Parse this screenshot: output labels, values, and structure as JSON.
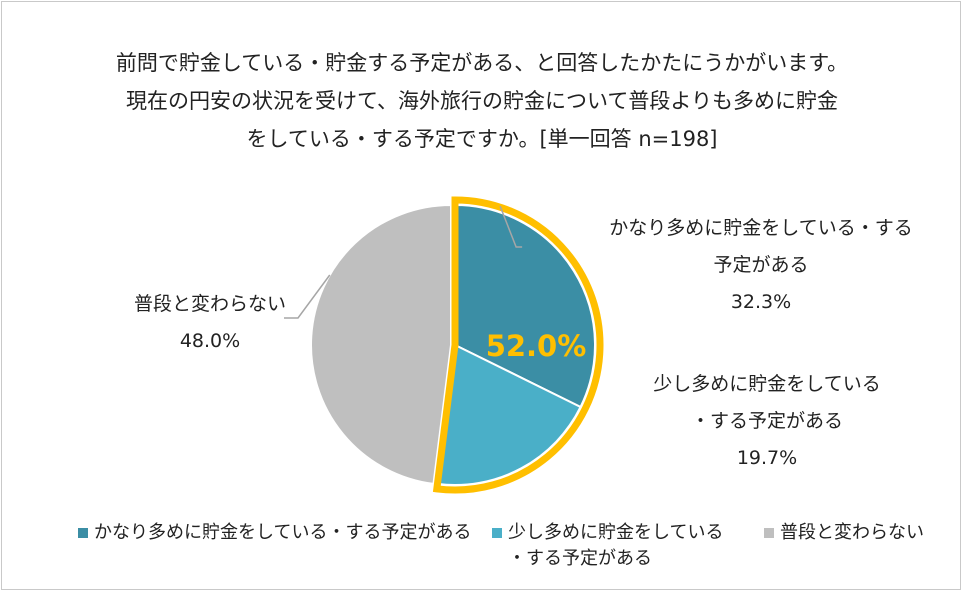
{
  "title": {
    "line1": "前問で貯金している・貯金する予定がある、と回答したかたにうかがいます。",
    "line2": "現在の円安の状況を受けて、海外旅行の貯金について普段よりも多めに貯金",
    "line3": "をしている・する予定ですか。[単一回答 n=198]"
  },
  "highlight_label": "52.0%",
  "colors": {
    "series1": "#3b8ea5",
    "series2": "#4aafc8",
    "series3": "#bfbfbf",
    "highlight": "#ffbf00"
  },
  "chart_data": {
    "type": "pie",
    "slices": [
      {
        "label": "かなり多めに貯金をしている・する予定がある",
        "value": 32.3,
        "value_label": "32.3%",
        "callout": [
          "かなり多めに貯金をしている・する",
          "予定がある"
        ]
      },
      {
        "label": "少し多めに貯金をしている・する予定がある",
        "value": 19.7,
        "value_label": "19.7%",
        "callout": [
          "少し多めに貯金をしている",
          "・する予定がある"
        ]
      },
      {
        "label": "普段と変わらない",
        "value": 48.0,
        "value_label": "48.0%",
        "callout": [
          "普段と変わらない"
        ]
      }
    ],
    "highlight_total": 52.0
  },
  "legend": [
    {
      "text": "かなり多めに貯金をしている・する予定がある"
    },
    {
      "text": "少し多めに貯金をしている\n・する予定がある"
    },
    {
      "text": "普段と変わらない"
    }
  ]
}
